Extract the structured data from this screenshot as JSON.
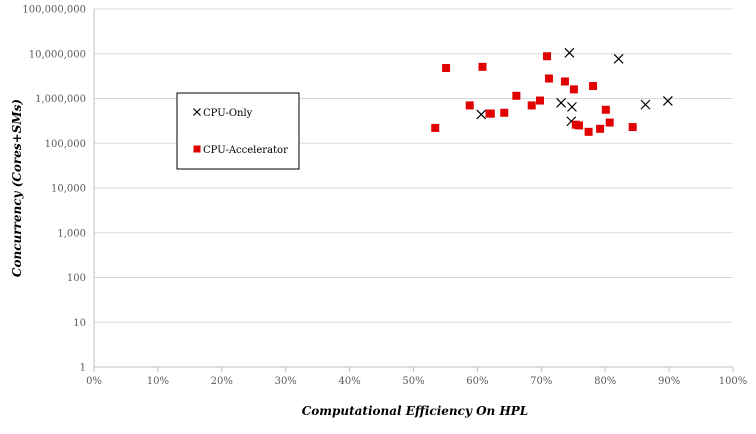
{
  "chart_data": {
    "type": "scatter",
    "title": "",
    "xlabel": "Computational Efficiency On HPL",
    "ylabel": "Concurrency (Cores+SMs)",
    "xlim": [
      0,
      1
    ],
    "ylim": [
      1,
      100000000
    ],
    "y_scale": "log",
    "x_ticks": [
      "0%",
      "10%",
      "20%",
      "30%",
      "40%",
      "50%",
      "60%",
      "70%",
      "80%",
      "90%",
      "100%"
    ],
    "y_ticks": [
      "1",
      "10",
      "100",
      "1,000",
      "10,000",
      "100,000",
      "1,000,000",
      "10,000,000",
      "100,000,000"
    ],
    "grid": "horizontal",
    "legend_position": "left",
    "colors": {
      "cpu_only": "#000000",
      "cpu_accelerator": "#e00000"
    },
    "series": [
      {
        "name": "CPU-Only",
        "marker": "x",
        "points": [
          [
            0.606,
            440000
          ],
          [
            0.731,
            800000
          ],
          [
            0.744,
            10500000
          ],
          [
            0.747,
            310000
          ],
          [
            0.748,
            650000
          ],
          [
            0.821,
            7700000
          ],
          [
            0.863,
            730000
          ],
          [
            0.898,
            880000
          ]
        ]
      },
      {
        "name": "CPU-Accelerator",
        "marker": "square",
        "points": [
          [
            0.534,
            220000
          ],
          [
            0.551,
            4800000
          ],
          [
            0.588,
            700000
          ],
          [
            0.608,
            5100000
          ],
          [
            0.619,
            460000
          ],
          [
            0.621,
            460000
          ],
          [
            0.642,
            480000
          ],
          [
            0.661,
            1150000
          ],
          [
            0.685,
            700000
          ],
          [
            0.698,
            900000
          ],
          [
            0.709,
            8800000
          ],
          [
            0.712,
            2800000
          ],
          [
            0.737,
            2400000
          ],
          [
            0.751,
            1600000
          ],
          [
            0.754,
            260000
          ],
          [
            0.759,
            250000
          ],
          [
            0.774,
            180000
          ],
          [
            0.781,
            1900000
          ],
          [
            0.792,
            210000
          ],
          [
            0.801,
            560000
          ],
          [
            0.807,
            290000
          ],
          [
            0.843,
            230000
          ]
        ]
      }
    ]
  }
}
